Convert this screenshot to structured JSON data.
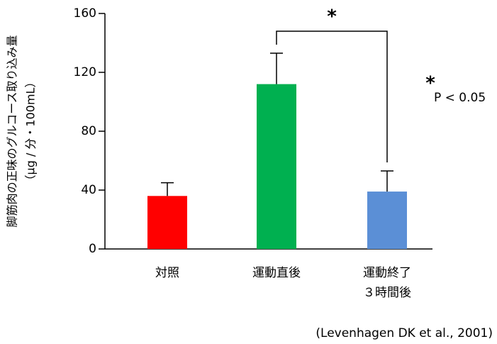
{
  "chart_data": {
    "type": "bar",
    "y_label": [
      "脚筋肉の正味のグルコース取り込み量",
      "（μg / 分・100mL）"
    ],
    "categories": [
      [
        "対照"
      ],
      [
        "運動直後"
      ],
      [
        "運動終了",
        "３時間後"
      ]
    ],
    "values": [
      36,
      112,
      39
    ],
    "errors": [
      9,
      21,
      14
    ],
    "colors": [
      "#ff0000",
      "#00b050",
      "#5b8fd6"
    ],
    "ylim": [
      0,
      160
    ],
    "yticks": [
      0,
      40,
      80,
      120,
      160
    ],
    "grid": false,
    "significance": {
      "mark": "*",
      "between": [
        1,
        2
      ]
    },
    "legend": {
      "mark": "*",
      "text": "P < 0.05"
    },
    "source": "(Levenhagen DK et al., 2001)"
  }
}
